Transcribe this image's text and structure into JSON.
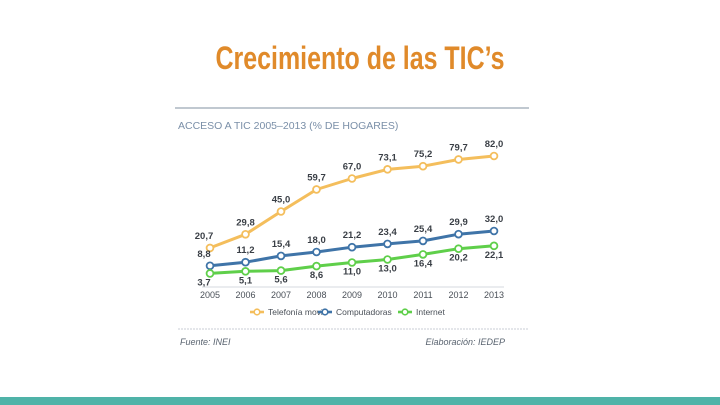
{
  "slide": {
    "title": "Crecimiento de las TIC’s"
  },
  "figure": {
    "source": "Fuente: INEI",
    "credit": "Elaboración: IEDEP"
  },
  "chart_data": {
    "type": "line",
    "title": "ACCESO A TIC 2005–2013 (% DE HOGARES)",
    "categories": [
      "2005",
      "2006",
      "2007",
      "2008",
      "2009",
      "2010",
      "2011",
      "2012",
      "2013"
    ],
    "ylim": [
      0,
      90
    ],
    "grid": false,
    "legend_position": "bottom",
    "series": [
      {
        "name": "Telefonía movil",
        "color": "#f4be5c",
        "values": [
          20.7,
          29.8,
          45.0,
          59.7,
          67.0,
          73.1,
          75.2,
          79.7,
          82.0
        ],
        "labels": [
          "20,7",
          "29,8",
          "45,0",
          "59,7",
          "67,0",
          "73,1",
          "75,2",
          "79,7",
          "82,0"
        ]
      },
      {
        "name": "Computadoras",
        "color": "#3f74a8",
        "values": [
          8.8,
          11.2,
          15.4,
          18.0,
          21.2,
          23.4,
          25.4,
          29.9,
          32.0
        ],
        "labels": [
          "8,8",
          "11,2",
          "15,4",
          "18,0",
          "21,2",
          "23,4",
          "25,4",
          "29,9",
          "32,0"
        ]
      },
      {
        "name": "Internet",
        "color": "#5fcf4a",
        "values": [
          3.7,
          5.1,
          5.6,
          8.6,
          11.0,
          13.0,
          16.4,
          20.2,
          22.1
        ],
        "labels": [
          "3,7",
          "5,1",
          "5,6",
          "8,6",
          "11,0",
          "13,0",
          "16,4",
          "20,2",
          "22,1"
        ]
      }
    ]
  }
}
